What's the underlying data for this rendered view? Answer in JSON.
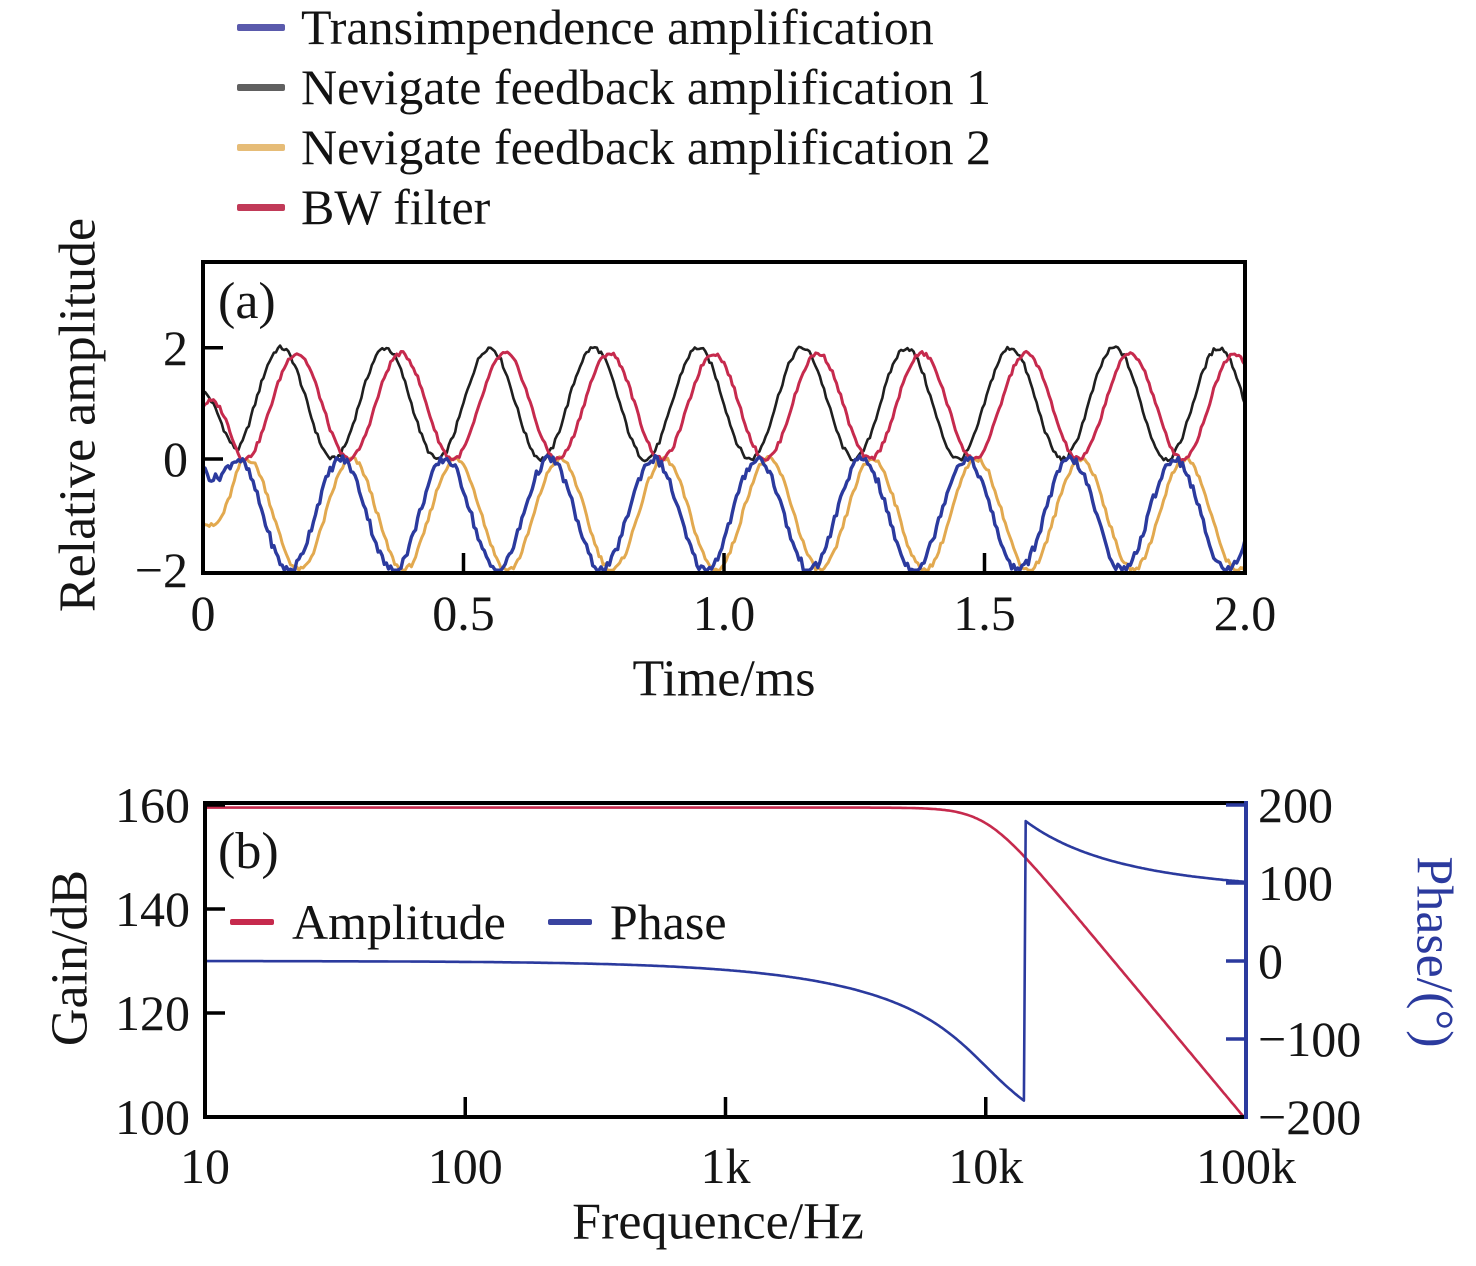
{
  "panel_a": {
    "label": "(a)",
    "x_label": "Time/ms",
    "y_label": "Relative amplitude",
    "x_tick_labels": [
      "0",
      "0.5",
      "1.0",
      "1.5",
      "2.0"
    ],
    "y_tick_labels": [
      "2",
      "0",
      "−2"
    ],
    "legend": [
      {
        "label": "Transimpendence amplification",
        "color": "#5a5aac"
      },
      {
        "label": "Nevigate feedback amplification 1",
        "color": "#606060"
      },
      {
        "label": "Nevigate feedback amplification 2",
        "color": "#e6bc77"
      },
      {
        "label": "BW filter",
        "color": "#c13a58"
      }
    ]
  },
  "panel_b": {
    "label": "(b)",
    "x_label": "Frequence/Hz",
    "y_label_left": "Gain/dB",
    "y_label_right": "Phase/(°)",
    "x_tick_labels": [
      "10",
      "100",
      "1k",
      "10k",
      "100k"
    ],
    "y_tick_labels_left": [
      "160",
      "140",
      "120",
      "100"
    ],
    "y_tick_labels_right": [
      "200",
      "100",
      "0",
      "−100",
      "−200"
    ],
    "legend": [
      {
        "label": "Amplitude",
        "color": "#c62a4d"
      },
      {
        "label": "Phase",
        "color": "#3a44a0"
      }
    ]
  },
  "chart_data": [
    {
      "type": "line",
      "panel": "(a)",
      "xlabel": "Time/ms",
      "ylabel": "Relative amplitude",
      "xlim": [
        0,
        2.0
      ],
      "ylim": [
        -2,
        3.55
      ],
      "x_ticks": [
        0,
        0.5,
        1.0,
        1.5,
        2.0
      ],
      "y_ticks": [
        2,
        0,
        -2
      ],
      "grid": false,
      "legend_position": "above-left",
      "description": "Four noisy measured sinusoids, period 0.2 ms (5 kHz). Two ride between 0 and +2, two between -2 and 0.",
      "series": [
        {
          "name": "Nevigate feedback amplification 1",
          "color": "#1f1f1f",
          "waveform": "sine",
          "offset": 1.0,
          "amplitude": 1.0,
          "period_ms": 0.2,
          "peak_at_ms": 0.15,
          "start_value": 1.2,
          "value_range": [
            0,
            2
          ],
          "noise": 0.045,
          "width": 2.6
        },
        {
          "name": "Nevigate feedback amplification 2",
          "color": "#e2a94f",
          "waveform": "sine",
          "offset": -1.0,
          "amplitude": 1.0,
          "period_ms": 0.2,
          "peak_at_ms": 0.085,
          "start_value": -1.1,
          "value_range": [
            -2,
            0
          ],
          "noise": 0.05,
          "width": 3.0
        },
        {
          "name": "BW filter",
          "color": "#c62a4d",
          "waveform": "sine",
          "offset": 0.95,
          "amplitude": 0.95,
          "period_ms": 0.2,
          "peak_at_ms": 0.18,
          "start_value": 0.95,
          "value_range": [
            0,
            1.9
          ],
          "noise": 0.04,
          "width": 3.0
        },
        {
          "name": "Transimpendence amplification",
          "color": "#2b3a9e",
          "waveform": "sine",
          "offset": -1.0,
          "amplitude": 1.0,
          "period_ms": 0.2,
          "peak_at_ms": 0.065,
          "start_value": -0.15,
          "value_range": [
            -2,
            0
          ],
          "noise": 0.08,
          "width": 3.4
        }
      ]
    },
    {
      "type": "line",
      "panel": "(b)",
      "xlabel": "Frequence/Hz",
      "ylabel_left": "Gain/dB",
      "ylabel_right": "Phase/(°)",
      "x_scale": "log",
      "xlim": [
        10,
        100000
      ],
      "x_ticks": [
        10,
        100,
        1000,
        10000,
        100000
      ],
      "ylim_left": [
        100,
        161
      ],
      "y_ticks_left": [
        160,
        140,
        120,
        100
      ],
      "ylim_right": [
        -200,
        200
      ],
      "y_ticks_right": [
        200,
        100,
        0,
        -100,
        -200
      ],
      "grid": false,
      "legend_position": "inside-upper-left",
      "model": {
        "filter": "Butterworth low-pass",
        "order": 3,
        "cutoff_hz": 10000,
        "dc_gain_db": 159.5,
        "rolloff_db_per_decade": -60,
        "phase_wrap_deg": 180
      },
      "series": [
        {
          "name": "Amplitude",
          "axis": "left",
          "color": "#c62a4d",
          "width": 2.6
        },
        {
          "name": "Phase",
          "axis": "right",
          "color": "#2b3a9e",
          "width": 2.6
        }
      ],
      "sample_points": {
        "frequency_hz": [
          10,
          100,
          1000,
          3000,
          10000,
          14000,
          14500,
          30000,
          100000
        ],
        "amplitude_db": [
          159.5,
          159.5,
          159.5,
          159.5,
          156.5,
          150.2,
          149.3,
          130.9,
          99.5
        ],
        "phase_deg": [
          -0.1,
          -1.1,
          -11.5,
          -35.0,
          -135.0,
          -178.9,
          177.4,
          128.9,
          101.5
        ]
      }
    }
  ]
}
